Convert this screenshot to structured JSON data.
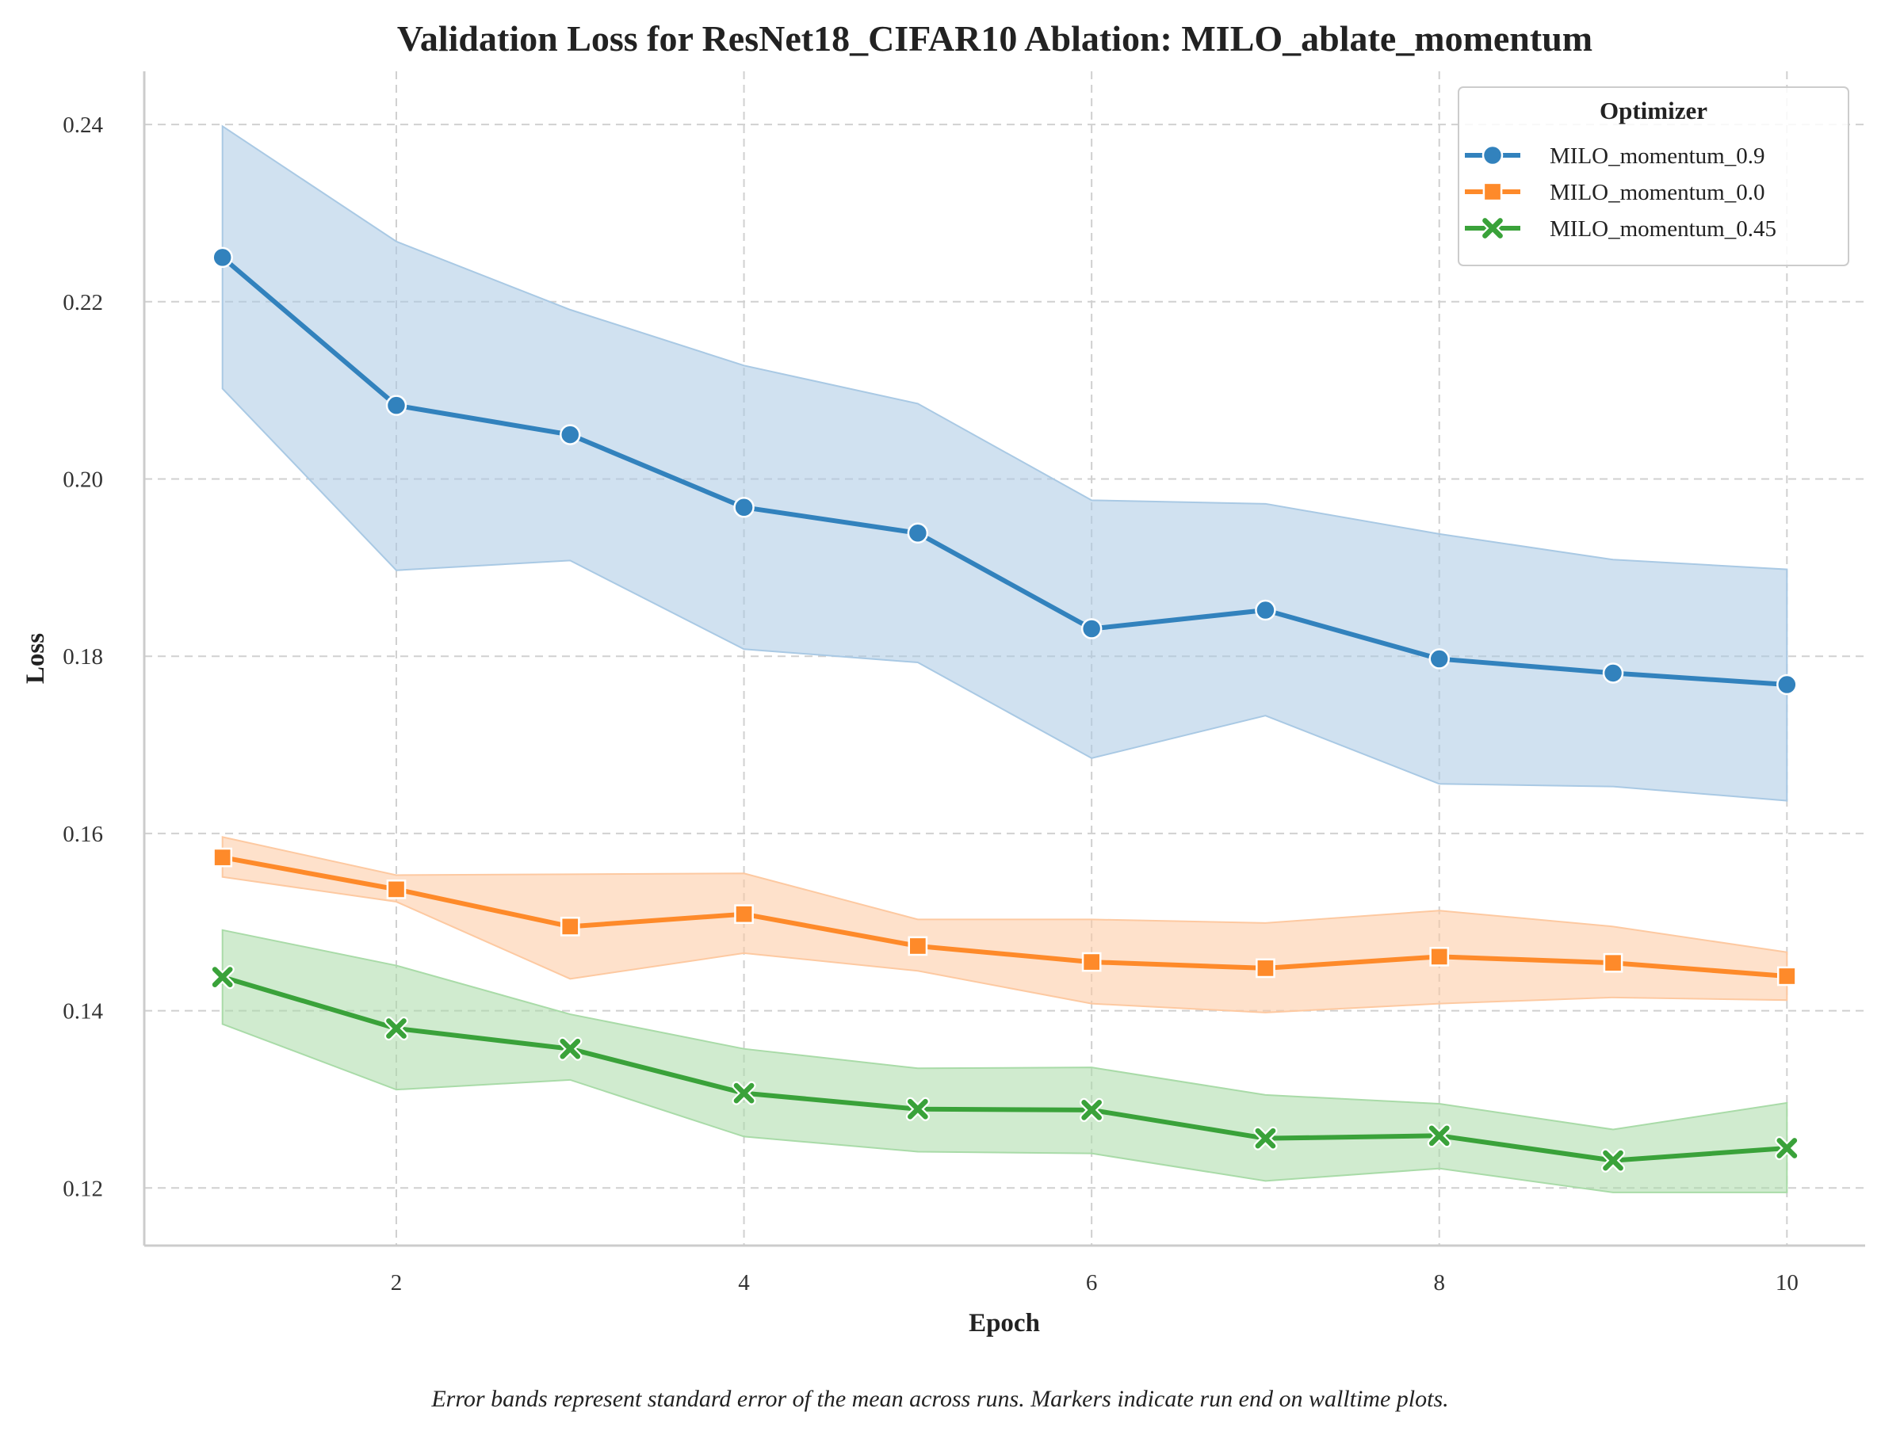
{
  "chart_data": {
    "type": "line",
    "title": "Validation Loss for ResNet18_CIFAR10 Ablation: MILO_ablate_momentum",
    "xlabel": "Epoch",
    "ylabel": "Loss",
    "xlim": [
      0.55,
      10.45
    ],
    "ylim": [
      0.1135,
      0.246
    ],
    "xticks": [
      2,
      4,
      6,
      8,
      10
    ],
    "yticks": [
      0.12,
      0.14,
      0.16,
      0.18,
      0.2,
      0.22,
      0.24
    ],
    "ytick_labels": [
      "0.12",
      "0.14",
      "0.16",
      "0.18",
      "0.20",
      "0.22",
      "0.24"
    ],
    "grid": true,
    "legend": {
      "title": "Optimizer",
      "placement": "top-right"
    },
    "caption": "Error bands represent standard error of the mean across runs. Markers indicate run end on walltime plots.",
    "x": [
      1,
      2,
      3,
      4,
      5,
      6,
      7,
      8,
      9,
      10
    ],
    "series": [
      {
        "name": "MILO_momentum_0.9",
        "color": "#3282bd",
        "band_color": "#a9c9e4",
        "marker": "circle",
        "values": [
          0.225,
          0.2083,
          0.205,
          0.1968,
          0.1939,
          0.1831,
          0.1852,
          0.1797,
          0.1781,
          0.1768
        ],
        "upper": [
          0.2398,
          0.2268,
          0.2191,
          0.2128,
          0.2085,
          0.1976,
          0.1972,
          0.1938,
          0.1909,
          0.1898
        ],
        "lower": [
          0.2102,
          0.1897,
          0.1908,
          0.1808,
          0.1793,
          0.1685,
          0.1733,
          0.1656,
          0.1653,
          0.1637
        ]
      },
      {
        "name": "MILO_momentum_0.0",
        "color": "#fe8a2a",
        "band_color": "#fdc9a1",
        "marker": "square",
        "values": [
          0.1573,
          0.1537,
          0.1495,
          0.1509,
          0.1473,
          0.1455,
          0.1448,
          0.1461,
          0.1454,
          0.1439
        ],
        "upper": [
          0.1596,
          0.1553,
          0.1554,
          0.1555,
          0.1503,
          0.1503,
          0.1499,
          0.1513,
          0.1495,
          0.1466
        ],
        "lower": [
          0.1551,
          0.1523,
          0.1436,
          0.1465,
          0.1445,
          0.1408,
          0.1398,
          0.1408,
          0.1415,
          0.1412
        ]
      },
      {
        "name": "MILO_momentum_0.45",
        "color": "#3aa23a",
        "band_color": "#a9dba8",
        "marker": "x",
        "values": [
          0.1438,
          0.138,
          0.1357,
          0.1307,
          0.1289,
          0.1288,
          0.1256,
          0.1259,
          0.1231,
          0.1245
        ],
        "upper": [
          0.1491,
          0.1451,
          0.1396,
          0.1357,
          0.1335,
          0.1336,
          0.1305,
          0.1295,
          0.1266,
          0.1296
        ],
        "lower": [
          0.1385,
          0.1311,
          0.1322,
          0.1258,
          0.1241,
          0.1239,
          0.1208,
          0.1222,
          0.1195,
          0.1195
        ]
      }
    ]
  }
}
